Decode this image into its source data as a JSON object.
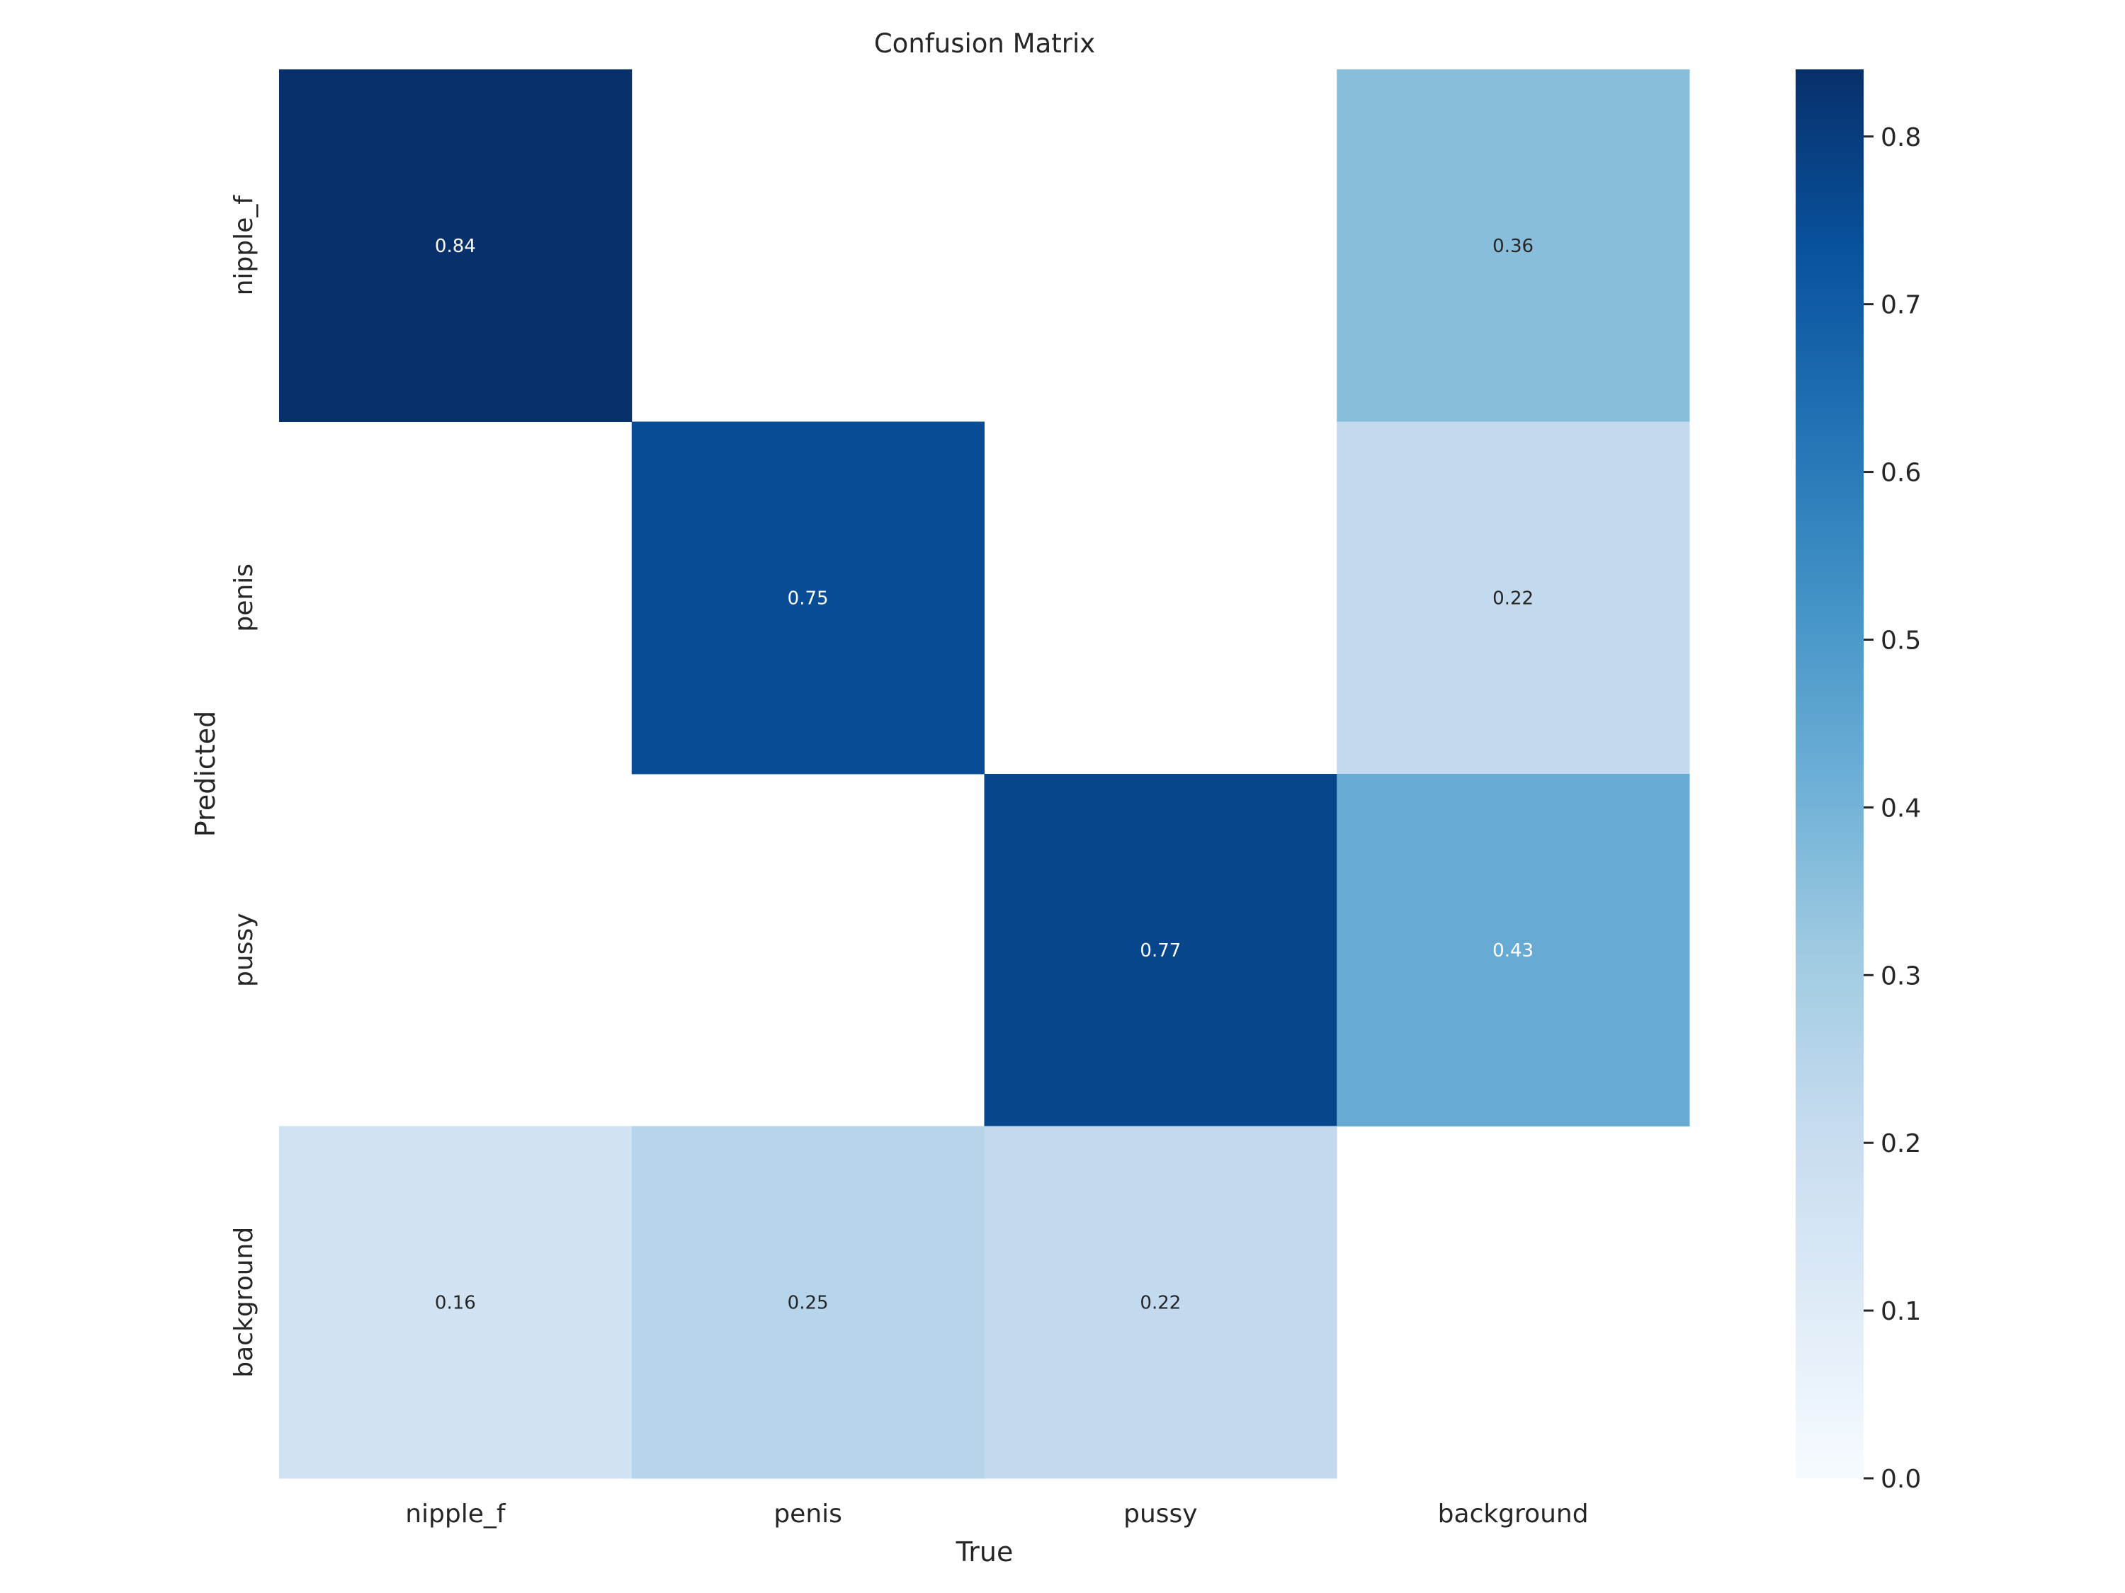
{
  "chart_data": {
    "type": "heatmap",
    "title": "Confusion Matrix",
    "xlabel": "True",
    "ylabel": "Predicted",
    "x_categories": [
      "nipple_f",
      "penis",
      "pussy",
      "background"
    ],
    "y_categories": [
      "nipple_f",
      "penis",
      "pussy",
      "background"
    ],
    "values": [
      [
        0.84,
        null,
        null,
        0.36
      ],
      [
        null,
        0.75,
        null,
        0.22
      ],
      [
        null,
        null,
        0.77,
        0.43
      ],
      [
        0.16,
        0.25,
        0.22,
        null
      ]
    ],
    "labels": [
      [
        "0.84",
        "",
        "",
        "0.36"
      ],
      [
        "",
        "0.75",
        "",
        "0.22"
      ],
      [
        "",
        "",
        "0.77",
        "0.43"
      ],
      [
        "0.16",
        "0.25",
        "0.22",
        ""
      ]
    ],
    "colormap": "Blues",
    "colorbar": {
      "range": [
        0,
        0.84
      ],
      "ticks": [
        0.0,
        0.1,
        0.2,
        0.3,
        0.4,
        0.5,
        0.6,
        0.7,
        0.8
      ],
      "tick_labels": [
        "0.0",
        "0.1",
        "0.2",
        "0.3",
        "0.4",
        "0.5",
        "0.6",
        "0.7",
        "0.8"
      ]
    },
    "grid": false
  }
}
